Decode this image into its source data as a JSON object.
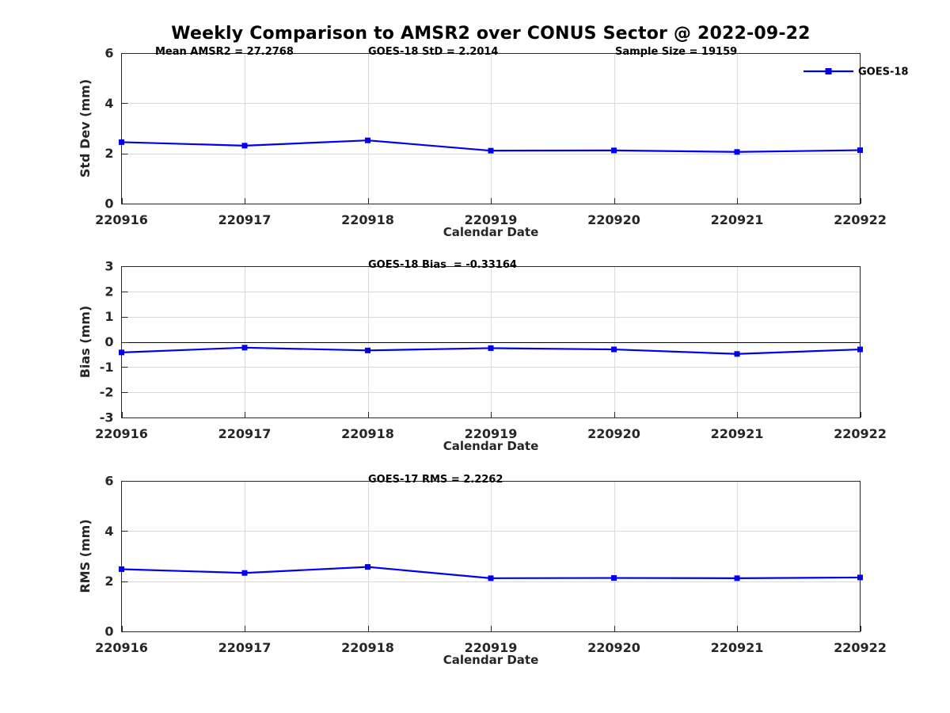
{
  "figure": {
    "title": "Weekly Comparison to AMSR2 over CONUS Sector @ 2022-09-22",
    "background": "#ffffff"
  },
  "legend": {
    "label": "GOES-18",
    "position": "top-right"
  },
  "colors": {
    "series": "#0000ee",
    "grid": "#d9d9d9",
    "axis": "#262626",
    "tick_text": "#262626",
    "text": "#000000",
    "zero_line": "#000000"
  },
  "chart_data": [
    {
      "type": "line",
      "name": "stddev",
      "xlabel": "Calendar Date",
      "ylabel": "Std Dev (mm)",
      "categories": [
        "220916",
        "220917",
        "220918",
        "220919",
        "220920",
        "220921",
        "220922"
      ],
      "series": [
        {
          "name": "GOES-18",
          "marker": "square",
          "values": [
            2.45,
            2.31,
            2.52,
            2.11,
            2.12,
            2.06,
            2.13
          ]
        }
      ],
      "ylim": [
        0,
        6
      ],
      "yticks": [
        0,
        2,
        4,
        6
      ],
      "grid": true,
      "zero_line": false,
      "legend_position": "top-right",
      "annotations": [
        {
          "name": "mean-amsr2",
          "text": "Mean AMSR2 = 27.2768"
        },
        {
          "name": "goes18-std",
          "text": "GOES-18 StD = 2.2014"
        },
        {
          "name": "sample-size",
          "text": "Sample Size = 19159"
        }
      ]
    },
    {
      "type": "line",
      "name": "bias",
      "xlabel": "Calendar Date",
      "ylabel": "Bias (mm)",
      "categories": [
        "220916",
        "220917",
        "220918",
        "220919",
        "220920",
        "220921",
        "220922"
      ],
      "series": [
        {
          "name": "GOES-18",
          "marker": "square",
          "values": [
            -0.42,
            -0.23,
            -0.34,
            -0.25,
            -0.3,
            -0.48,
            -0.3
          ]
        }
      ],
      "ylim": [
        -3,
        3
      ],
      "yticks": [
        -3,
        -2,
        -1,
        0,
        1,
        2,
        3
      ],
      "grid": true,
      "zero_line": true,
      "legend_position": "none",
      "annotations": [
        {
          "name": "goes18-bias",
          "text": "GOES-18 Bias  = -0.33164"
        }
      ]
    },
    {
      "type": "line",
      "name": "rms",
      "xlabel": "Calendar Date",
      "ylabel": "RMS (mm)",
      "categories": [
        "220916",
        "220917",
        "220918",
        "220919",
        "220920",
        "220921",
        "220922"
      ],
      "series": [
        {
          "name": "GOES-18",
          "marker": "square",
          "values": [
            2.48,
            2.33,
            2.57,
            2.12,
            2.13,
            2.12,
            2.15
          ]
        }
      ],
      "ylim": [
        0,
        6
      ],
      "yticks": [
        0,
        2,
        4,
        6
      ],
      "grid": true,
      "zero_line": false,
      "legend_position": "none",
      "annotations": [
        {
          "name": "goes17-rms",
          "text": "GOES-17 RMS = 2.2262"
        }
      ]
    }
  ]
}
